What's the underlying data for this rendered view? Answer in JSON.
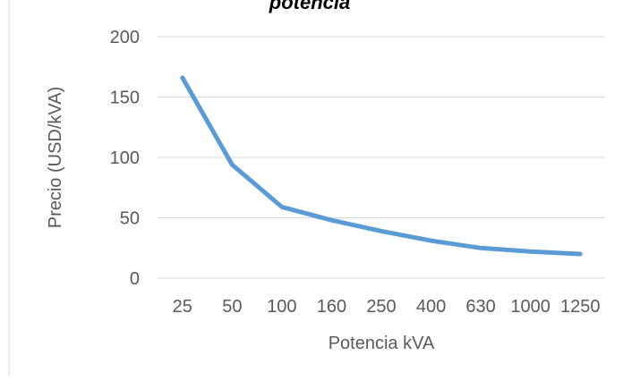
{
  "chart_data": {
    "type": "line",
    "title": "potencia",
    "xlabel": "Potencia kVA",
    "ylabel": "Precio (USD/kVA)",
    "categories": [
      "25",
      "50",
      "100",
      "160",
      "250",
      "400",
      "630",
      "1000",
      "1250"
    ],
    "series": [
      {
        "values": [
          166,
          94,
          59,
          48,
          39,
          31,
          25,
          22,
          20
        ]
      }
    ],
    "ylim": [
      0,
      200
    ],
    "yticks": [
      "0",
      "50",
      "100",
      "150",
      "200"
    ],
    "grid": "horizontal",
    "legend": "none",
    "colors": {
      "line": "#5b9bd5",
      "grid": "#d9d9d9",
      "text": "#595959",
      "title": "#000000",
      "frame": "#d9d9d9"
    }
  }
}
